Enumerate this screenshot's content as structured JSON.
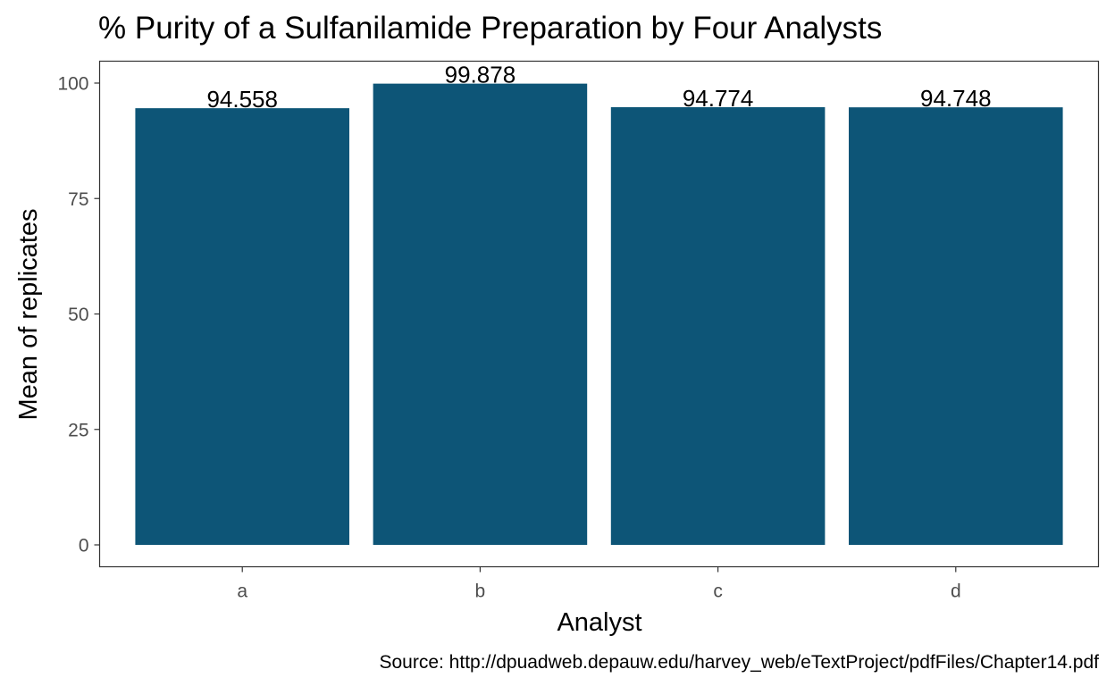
{
  "chart_data": {
    "type": "bar",
    "title": "% Purity of a Sulfanilamide Preparation by Four Analysts",
    "xlabel": "Analyst",
    "ylabel": "Mean of replicates",
    "categories": [
      "a",
      "b",
      "c",
      "d"
    ],
    "values": [
      94.558,
      99.878,
      94.774,
      94.748
    ],
    "data_labels": [
      "94.558",
      "99.878",
      "94.774",
      "94.748"
    ],
    "y_ticks": [
      0,
      25,
      50,
      75,
      100
    ],
    "y_tick_labels": [
      "0",
      "25",
      "50",
      "75",
      "100"
    ],
    "ylim": [
      0,
      104.87
    ],
    "grid": false,
    "bar_color": "#0d5577",
    "caption": "Source: http://dpuadweb.depauw.edu/harvey_web/eTextProject/pdfFiles/Chapter14.pdf"
  }
}
